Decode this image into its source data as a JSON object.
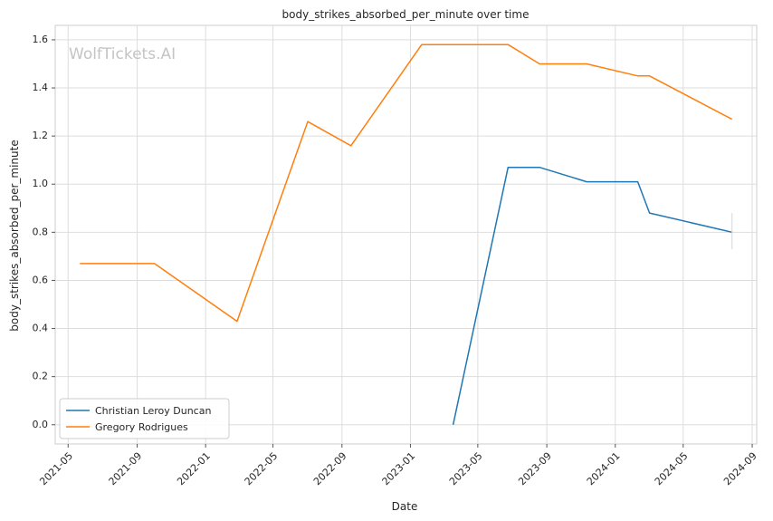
{
  "chart_data": {
    "type": "line",
    "title": "body_strikes_absorbed_per_minute over time",
    "xlabel": "Date",
    "ylabel": "body_strikes_absorbed_per_minute",
    "watermark": "WolfTickets.AI",
    "xlim": [
      "2021-04-08",
      "2024-09-09"
    ],
    "ylim": [
      -0.08,
      1.66
    ],
    "x_ticks": [
      "2021-05",
      "2021-09",
      "2022-01",
      "2022-05",
      "2022-09",
      "2023-01",
      "2023-05",
      "2023-09",
      "2024-01",
      "2024-05",
      "2024-09"
    ],
    "y_ticks": [
      "0.0",
      "0.2",
      "0.4",
      "0.6",
      "0.8",
      "1.0",
      "1.2",
      "1.4",
      "1.6"
    ],
    "grid": true,
    "legend_position": "lower-left",
    "series": [
      {
        "name": "Christian Leroy Duncan",
        "color": "#1f77b4",
        "points": [
          {
            "x": "2023-03-18",
            "y": 0.0
          },
          {
            "x": "2023-06-24",
            "y": 1.07
          },
          {
            "x": "2023-08-19",
            "y": 1.07
          },
          {
            "x": "2023-11-11",
            "y": 1.01
          },
          {
            "x": "2024-02-10",
            "y": 1.01
          },
          {
            "x": "2024-03-02",
            "y": 0.88
          },
          {
            "x": "2024-07-27",
            "y": 0.8
          }
        ],
        "error_bar": {
          "x": "2024-07-27",
          "low": 0.73,
          "high": 0.88
        }
      },
      {
        "name": "Gregory Rodrigues",
        "color": "#ff7f0e",
        "points": [
          {
            "x": "2021-05-22",
            "y": 0.67
          },
          {
            "x": "2021-10-02",
            "y": 0.67
          },
          {
            "x": "2022-02-26",
            "y": 0.43
          },
          {
            "x": "2022-07-02",
            "y": 1.26
          },
          {
            "x": "2022-09-17",
            "y": 1.16
          },
          {
            "x": "2023-01-21",
            "y": 1.58
          },
          {
            "x": "2023-06-24",
            "y": 1.58
          },
          {
            "x": "2023-08-19",
            "y": 1.5
          },
          {
            "x": "2023-11-11",
            "y": 1.5
          },
          {
            "x": "2024-02-10",
            "y": 1.45
          },
          {
            "x": "2024-03-02",
            "y": 1.45
          },
          {
            "x": "2024-07-27",
            "y": 1.27
          }
        ]
      }
    ]
  }
}
